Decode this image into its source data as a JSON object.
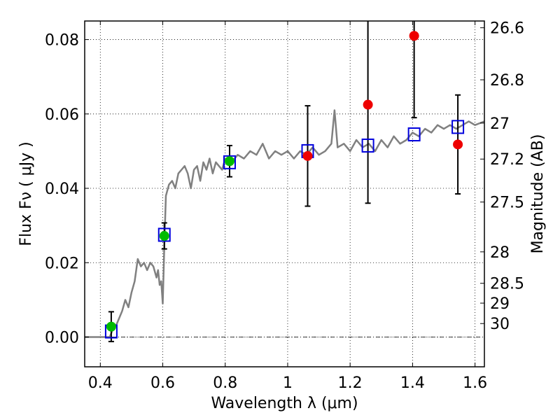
{
  "chart_data": {
    "type": "scatter",
    "xlabel": "Wavelength  λ (μm)",
    "ylabel": "Flux  Fν  ( μJy )",
    "ylabel_right": "Magnitude (AB)",
    "xlim": [
      0.35,
      1.63
    ],
    "ylim": [
      -0.008,
      0.085
    ],
    "x_ticks": [
      {
        "value": 0.4,
        "label": "0.4"
      },
      {
        "value": 0.6,
        "label": "0.6"
      },
      {
        "value": 0.8,
        "label": "0.8"
      },
      {
        "value": 1.0,
        "label": "1"
      },
      {
        "value": 1.2,
        "label": "1.2"
      },
      {
        "value": 1.4,
        "label": "1.4"
      },
      {
        "value": 1.6,
        "label": "1.6"
      }
    ],
    "y_ticks": [
      {
        "value": 0.0,
        "label": "0.00"
      },
      {
        "value": 0.02,
        "label": "0.02"
      },
      {
        "value": 0.04,
        "label": "0.04"
      },
      {
        "value": 0.06,
        "label": "0.06"
      },
      {
        "value": 0.08,
        "label": "0.08"
      }
    ],
    "right_ticks": [
      {
        "value": 26.6,
        "label": "26.6"
      },
      {
        "value": 26.8,
        "label": "26.8"
      },
      {
        "value": 27.0,
        "label": "27"
      },
      {
        "value": 27.2,
        "label": "27.2"
      },
      {
        "value": 27.5,
        "label": "27.5"
      },
      {
        "value": 28.0,
        "label": "28"
      },
      {
        "value": 28.5,
        "label": "28.5"
      },
      {
        "value": 29.0,
        "label": "29"
      },
      {
        "value": 30.0,
        "label": "30"
      }
    ],
    "grid": true,
    "colors": {
      "model": "#808080",
      "observed_detection": "#00bb00",
      "observed_upper": "#ee0000",
      "synthetic": "#0000dd",
      "errorbar": "#000000"
    },
    "series": [
      {
        "kind": "line",
        "x": [
          0.35,
          0.43,
          0.44,
          0.45,
          0.46,
          0.47,
          0.48,
          0.49,
          0.5,
          0.51,
          0.52,
          0.53,
          0.54,
          0.55,
          0.56,
          0.57,
          0.58,
          0.585,
          0.59,
          0.595,
          0.6,
          0.605,
          0.61,
          0.62,
          0.63,
          0.64,
          0.65,
          0.66,
          0.67,
          0.68,
          0.69,
          0.7,
          0.71,
          0.72,
          0.73,
          0.74,
          0.75,
          0.76,
          0.77,
          0.78,
          0.79,
          0.8,
          0.82,
          0.84,
          0.86,
          0.88,
          0.9,
          0.92,
          0.94,
          0.96,
          0.98,
          1.0,
          1.02,
          1.04,
          1.06,
          1.08,
          1.1,
          1.12,
          1.14,
          1.15,
          1.16,
          1.18,
          1.2,
          1.22,
          1.24,
          1.26,
          1.28,
          1.3,
          1.32,
          1.34,
          1.36,
          1.38,
          1.4,
          1.42,
          1.44,
          1.46,
          1.48,
          1.5,
          1.52,
          1.54,
          1.56,
          1.58,
          1.6,
          1.63
        ],
        "y": [
          0.0,
          0.0,
          0.002,
          0.003,
          0.005,
          0.007,
          0.01,
          0.008,
          0.012,
          0.015,
          0.021,
          0.019,
          0.02,
          0.018,
          0.02,
          0.019,
          0.016,
          0.018,
          0.014,
          0.015,
          0.009,
          0.025,
          0.038,
          0.041,
          0.042,
          0.04,
          0.044,
          0.045,
          0.046,
          0.044,
          0.04,
          0.045,
          0.046,
          0.042,
          0.047,
          0.045,
          0.048,
          0.044,
          0.047,
          0.046,
          0.045,
          0.048,
          0.047,
          0.049,
          0.048,
          0.05,
          0.049,
          0.052,
          0.048,
          0.05,
          0.049,
          0.05,
          0.048,
          0.05,
          0.049,
          0.051,
          0.049,
          0.05,
          0.052,
          0.061,
          0.051,
          0.052,
          0.05,
          0.053,
          0.051,
          0.052,
          0.05,
          0.053,
          0.051,
          0.054,
          0.052,
          0.053,
          0.055,
          0.054,
          0.056,
          0.055,
          0.057,
          0.056,
          0.057,
          0.056,
          0.057,
          0.058,
          0.057,
          0.058
        ]
      },
      {
        "kind": "synthetic-squares",
        "x": [
          0.435,
          0.605,
          0.814,
          1.064,
          1.257,
          1.405,
          1.545
        ],
        "y": [
          0.0015,
          0.0275,
          0.047,
          0.05,
          0.0515,
          0.0545,
          0.0565
        ]
      },
      {
        "kind": "observed-green",
        "x": [
          0.435,
          0.605,
          0.814
        ],
        "y": [
          0.0028,
          0.0272,
          0.0473
        ],
        "err": [
          0.004,
          0.0035,
          0.0042
        ]
      },
      {
        "kind": "observed-red",
        "x": [
          1.064,
          1.257,
          1.405,
          1.545
        ],
        "y": [
          0.0487,
          0.0625,
          0.081,
          0.0518
        ],
        "err": [
          0.0135,
          0.0265,
          0.022,
          0.0133
        ]
      }
    ]
  }
}
